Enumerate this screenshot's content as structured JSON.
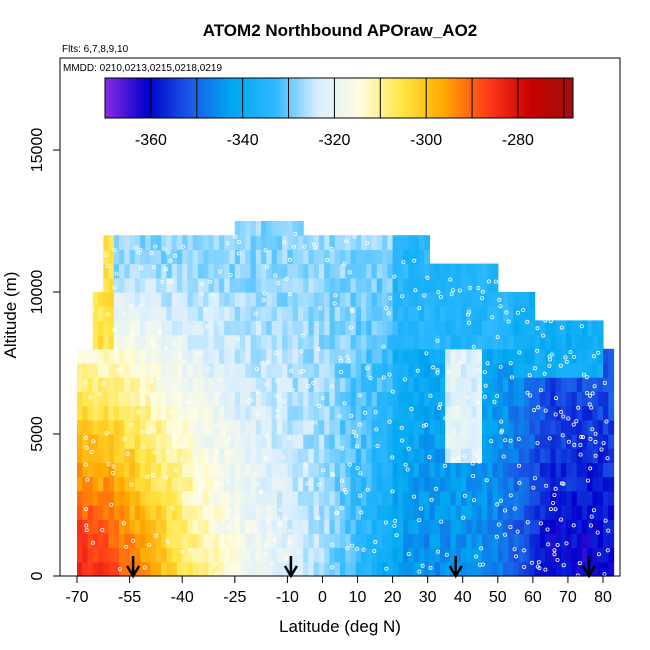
{
  "chart_data": {
    "type": "heatmap",
    "title": "ATOM2 Northbound APOraw_AO2",
    "flights_note": "Flts: 6,7,8,9,10",
    "dates_note": "MMDD: 0210,0213,0215,0218,0219",
    "xlabel": "Latitude (deg N)",
    "ylabel": "Altitude (m)",
    "xlim": [
      -70,
      85
    ],
    "ylim": [
      0,
      17500
    ],
    "x_ticks": [
      -70,
      -55,
      -40,
      -25,
      -10,
      0,
      10,
      20,
      30,
      40,
      50,
      60,
      70,
      80
    ],
    "x_tick_labels": [
      "-70",
      "-55",
      "-40",
      "-25",
      "-10",
      "0",
      "10",
      "20",
      "30",
      "40",
      "50",
      "60",
      "70",
      "80"
    ],
    "y_ticks": [
      0,
      5000,
      10000,
      15000
    ],
    "y_tick_labels": [
      "0",
      "5000",
      "10000",
      "15000"
    ],
    "colorbar": {
      "range": [
        -370,
        -268
      ],
      "ticks": [
        -360,
        -340,
        -320,
        -300,
        -280
      ],
      "tick_labels": [
        "-360",
        "-340",
        "-320",
        "-300",
        "-280"
      ],
      "divisions": [
        -360,
        -350,
        -340,
        -330,
        -320,
        -310,
        -300,
        -290,
        -280,
        -270
      ],
      "colors": [
        "#8a2be2",
        "#0000cd",
        "#1a5ae6",
        "#00a8f0",
        "#2fb8ff",
        "#d9eeff",
        "#fffde0",
        "#ffe540",
        "#ffa500",
        "#ff3a1a",
        "#c80000",
        "#a01010"
      ]
    },
    "arrows_latitude": [
      -54,
      -9,
      38,
      76
    ],
    "field_description_points": [
      {
        "lat": -65,
        "alt_top": 7500,
        "surface_value": -282
      },
      {
        "lat": -45,
        "alt_top": 11500,
        "surface_value": -300
      },
      {
        "lat": -15,
        "alt_top": 12500,
        "surface_value": -318
      },
      {
        "lat": 20,
        "alt_top": 12000,
        "surface_value": -345
      },
      {
        "lat": 45,
        "alt_top": 10000,
        "surface_value": -350
      },
      {
        "lat": 70,
        "alt_top": 9000,
        "surface_value": -362
      }
    ]
  }
}
